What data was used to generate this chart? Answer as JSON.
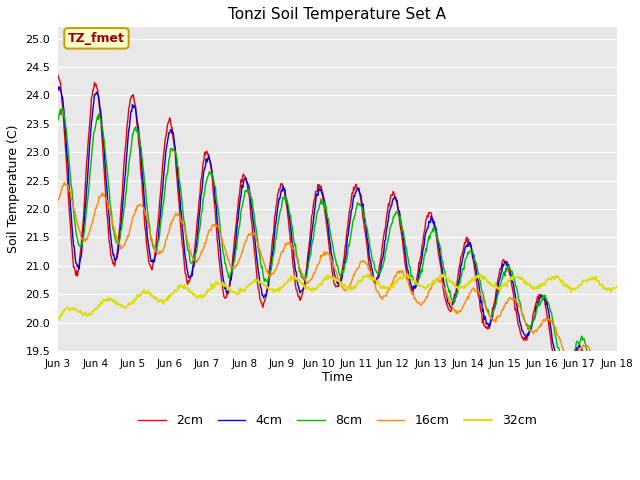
{
  "title": "Tonzi Soil Temperature Set A",
  "xlabel": "Time",
  "ylabel": "Soil Temperature (C)",
  "ylim": [
    19.5,
    25.2
  ],
  "xlim": [
    0,
    360
  ],
  "annotation_text": "TZ_fmet",
  "annotation_bg": "#ffffcc",
  "annotation_border": "#c8a000",
  "annotation_text_color": "#990000",
  "colors": {
    "2cm": "#ee0000",
    "4cm": "#0000dd",
    "8cm": "#00bb00",
    "16cm": "#ff8800",
    "32cm": "#dddd00"
  },
  "legend_labels": [
    "2cm",
    "4cm",
    "8cm",
    "16cm",
    "32cm"
  ],
  "xtick_labels": [
    "Jun 3",
    "Jun 4",
    "Jun 5",
    "Jun 6",
    "Jun 7",
    "Jun 8",
    "Jun 9",
    "Jun 10",
    "Jun 11",
    "Jun 12",
    "Jun 13",
    "Jun 14",
    "Jun 15",
    "Jun 16",
    "Jun 17",
    "Jun 18"
  ],
  "xtick_positions": [
    0,
    24,
    48,
    72,
    96,
    120,
    144,
    168,
    192,
    216,
    240,
    264,
    288,
    312,
    336,
    360
  ],
  "ytick_values": [
    19.5,
    20.0,
    20.5,
    21.0,
    21.5,
    22.0,
    22.5,
    23.0,
    23.5,
    24.0,
    24.5,
    25.0
  ],
  "num_points": 721
}
